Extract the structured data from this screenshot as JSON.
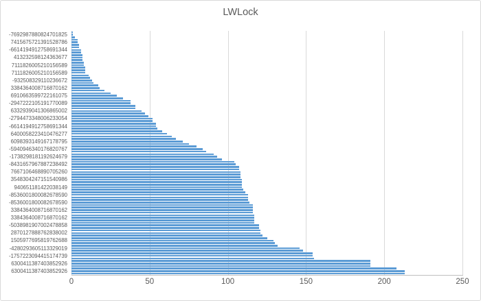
{
  "window": {
    "background": "#FFFFFF",
    "border_color": "#D9D9D9"
  },
  "chart_data": {
    "type": "bar",
    "orientation": "horizontal",
    "title": "LWLock",
    "legend": "none",
    "grid": "vertical major gridlines",
    "xlabel": "",
    "ylabel": "",
    "xlim": [
      0,
      250
    ],
    "x_ticks": [
      0,
      50,
      100,
      150,
      200,
      250
    ],
    "bar_color": "#5B9BD5",
    "title_color": "#595959",
    "axis_label_color": "#595959",
    "gridline_color": "#D9D9D9",
    "axis_line_color": "#BFBFBF",
    "value_order": "ascending from top to bottom",
    "category_label_interval": 3,
    "visible_category_labels": [
      "-7692987880824701825",
      "7415675721391528786",
      "-6614194912758691344",
      "413232598124363677",
      "7111826005210156589",
      "7111826005210156589",
      "-932508329110236672",
      "3384364008716870162",
      "6910663599722161075",
      "-2947222105191770089",
      "6332939041306865002",
      "-2794473348006233054",
      "-6614194912758691344",
      "6400058223410476277",
      "6098393149167178795",
      "-5940946340176820767",
      "-1738298181192624679",
      "-8431657967887238492",
      "7667106468890705260",
      "3548304247151540986",
      "940651181422038149",
      "-8536001800082678590",
      "-8536001800082678590",
      "3384364008716870162",
      "3384364008716870162",
      "-5038981907002478858",
      "2870127888762838002",
      "1505977695819762688",
      "-4280293605113329019",
      "-1757223094415174739",
      "6300411387403852926",
      "6300411387403852926"
    ],
    "values": [
      1,
      1,
      2,
      4,
      4,
      5,
      5,
      6,
      6,
      7,
      7,
      7,
      8,
      8,
      9,
      9,
      9,
      11,
      12,
      13,
      14,
      17,
      18,
      21,
      25,
      29,
      33,
      38,
      38,
      41,
      41,
      45,
      47,
      49,
      52,
      52,
      54,
      54,
      55,
      58,
      61,
      64,
      67,
      71,
      75,
      80,
      84,
      86,
      91,
      93,
      96,
      104,
      105,
      107,
      107,
      108,
      108,
      108,
      109,
      109,
      109,
      109,
      110,
      111,
      113,
      113,
      113,
      114,
      116,
      116,
      116,
      116,
      117,
      117,
      117,
      117,
      120,
      120,
      121,
      121,
      122,
      125,
      129,
      130,
      132,
      146,
      148,
      154,
      154,
      155,
      191,
      191,
      191,
      208,
      213,
      213
    ]
  }
}
